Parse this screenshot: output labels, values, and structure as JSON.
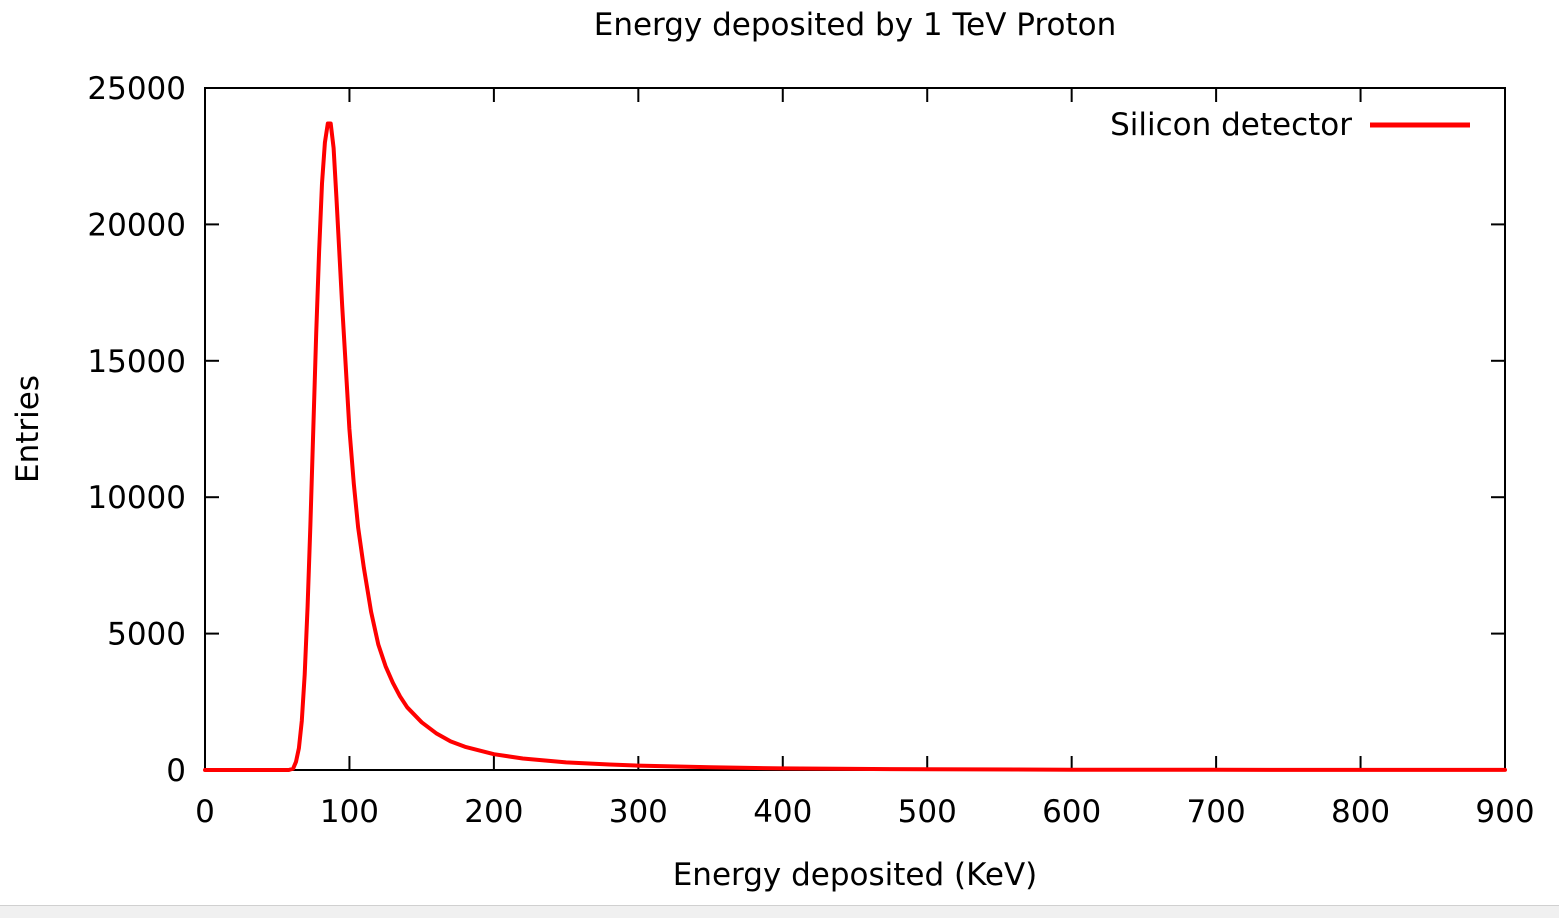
{
  "chart_data": {
    "type": "line",
    "title": "Energy deposited by 1 TeV Proton",
    "xlabel": "Energy deposited (KeV)",
    "ylabel": "Entries",
    "xlim": [
      0,
      900
    ],
    "ylim": [
      0,
      25000
    ],
    "xticks": [
      0,
      100,
      200,
      300,
      400,
      500,
      600,
      700,
      800,
      900
    ],
    "yticks": [
      0,
      5000,
      10000,
      15000,
      20000,
      25000
    ],
    "xtick_labels": [
      "0",
      "100",
      "200",
      "300",
      "400",
      "500",
      "600",
      "700",
      "800",
      "900"
    ],
    "ytick_labels": [
      "0",
      "5000",
      "10000",
      "15000",
      "20000",
      "25000"
    ],
    "grid": false,
    "legend_position": "top-right",
    "series": [
      {
        "name": "Silicon detector",
        "color": "#ff0000",
        "x": [
          0,
          50,
          58,
          61,
          63,
          65,
          67,
          69,
          71,
          73,
          75,
          77,
          79,
          81,
          83,
          85,
          87,
          89,
          91,
          93,
          95,
          97,
          100,
          103,
          106,
          110,
          115,
          120,
          125,
          130,
          135,
          140,
          150,
          160,
          170,
          180,
          200,
          220,
          250,
          280,
          300,
          350,
          400,
          450,
          500,
          600,
          700,
          800,
          900
        ],
        "y": [
          0,
          0,
          0,
          50,
          300,
          800,
          1800,
          3500,
          6000,
          9000,
          12500,
          16000,
          19000,
          21500,
          23000,
          23700,
          23700,
          22800,
          21000,
          19000,
          17000,
          15200,
          12500,
          10500,
          8900,
          7400,
          5800,
          4600,
          3800,
          3200,
          2700,
          2300,
          1750,
          1350,
          1050,
          850,
          580,
          420,
          280,
          200,
          160,
          100,
          60,
          40,
          25,
          12,
          8,
          5,
          3
        ]
      }
    ]
  }
}
